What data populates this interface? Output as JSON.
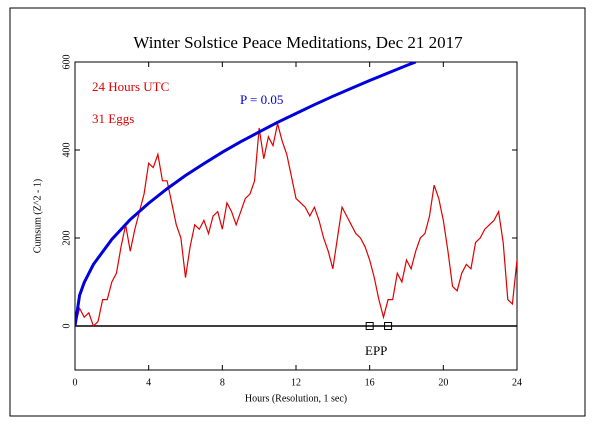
{
  "chart_data": {
    "type": "line",
    "title": "Winter Solstice Peace Meditations, Dec 21 2017",
    "x_label": "Hours (Resolution, 1 sec)",
    "y_label": "Cumsum (Z^2 - 1)",
    "annotations": [
      {
        "text": "24 Hours UTC",
        "color": "#e00000"
      },
      {
        "text": "31 Eggs",
        "color": "#e00000"
      },
      {
        "text": "P = 0.05",
        "color": "#0000cc"
      },
      {
        "text": "EPP",
        "color": "#000000"
      }
    ],
    "xlim": [
      0,
      24
    ],
    "xticks": [
      0,
      4,
      8,
      12,
      16,
      20,
      24
    ],
    "ylim": [
      -100,
      600
    ],
    "yticks": [
      0,
      200,
      400,
      600
    ],
    "hline": 0,
    "event_markers": {
      "x": [
        16,
        17
      ],
      "y": [
        0,
        0
      ]
    },
    "series": [
      {
        "color": "#e00000",
        "x": [
          0,
          0.25,
          0.5,
          0.75,
          1,
          1.25,
          1.5,
          1.75,
          2,
          2.25,
          2.5,
          2.75,
          3,
          3.25,
          3.5,
          3.75,
          4,
          4.25,
          4.5,
          4.75,
          5,
          5.25,
          5.5,
          5.75,
          6,
          6.25,
          6.5,
          6.75,
          7,
          7.25,
          7.5,
          7.75,
          8,
          8.25,
          8.5,
          8.75,
          9,
          9.25,
          9.5,
          9.75,
          10,
          10.25,
          10.5,
          10.75,
          11,
          11.25,
          11.5,
          11.75,
          12,
          12.25,
          12.5,
          12.75,
          13,
          13.25,
          13.5,
          13.75,
          14,
          14.25,
          14.5,
          14.75,
          15,
          15.25,
          15.5,
          15.75,
          16,
          16.25,
          16.5,
          16.75,
          17,
          17.25,
          17.5,
          17.75,
          18,
          18.25,
          18.5,
          18.75,
          19,
          19.25,
          19.5,
          19.75,
          20,
          20.25,
          20.5,
          20.75,
          21,
          21.25,
          21.5,
          21.75,
          22,
          22.25,
          22.5,
          22.75,
          23,
          23.25,
          23.5,
          23.75,
          24
        ],
        "values": [
          0,
          40,
          20,
          30,
          0,
          10,
          60,
          60,
          100,
          120,
          180,
          230,
          170,
          220,
          260,
          300,
          370,
          360,
          390,
          330,
          330,
          280,
          230,
          200,
          110,
          180,
          230,
          220,
          240,
          210,
          250,
          260,
          220,
          280,
          260,
          230,
          260,
          290,
          300,
          330,
          450,
          380,
          430,
          410,
          460,
          420,
          390,
          340,
          290,
          280,
          270,
          250,
          270,
          240,
          200,
          170,
          130,
          200,
          270,
          250,
          230,
          210,
          200,
          180,
          150,
          110,
          60,
          20,
          60,
          60,
          120,
          100,
          150,
          130,
          170,
          200,
          210,
          250,
          320,
          290,
          240,
          170,
          90,
          80,
          120,
          140,
          130,
          190,
          200,
          220,
          230,
          240,
          260,
          190,
          60,
          50,
          150
        ]
      },
      {
        "color": "#0000dd",
        "x": [
          0,
          0.25,
          0.5,
          1,
          2,
          3,
          4,
          5,
          6,
          7,
          8,
          9,
          10,
          11,
          12,
          13,
          14,
          15,
          16,
          17,
          18,
          18.5
        ],
        "values": [
          0,
          70,
          99,
          140,
          197,
          242,
          279,
          312,
          342,
          369,
          395,
          419,
          441,
          463,
          483,
          503,
          522,
          540,
          558,
          575,
          592,
          600
        ]
      }
    ]
  }
}
